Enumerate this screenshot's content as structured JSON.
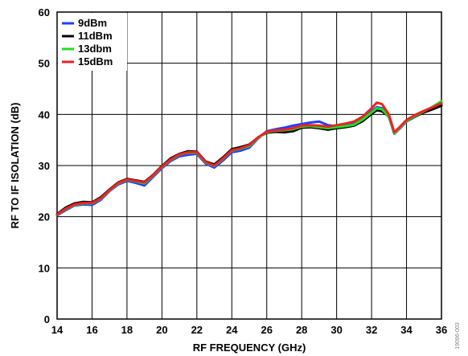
{
  "chart_data": {
    "type": "line",
    "title": "",
    "xlabel": "RF FREQUENCY (GHz)",
    "ylabel": "RF TO IF ISOLATION (dB)",
    "xlim": [
      14,
      36
    ],
    "ylim": [
      0,
      60
    ],
    "xticks": [
      14,
      16,
      18,
      20,
      22,
      24,
      26,
      28,
      30,
      32,
      34,
      36
    ],
    "yticks": [
      0,
      10,
      20,
      30,
      40,
      50,
      60
    ],
    "grid": true,
    "legend_position": "top-left",
    "figure_id": "19096-003",
    "series": [
      {
        "name": "9dBm",
        "color": "#1f3fff",
        "x": [
          14,
          14.5,
          15,
          15.5,
          16,
          16.5,
          17,
          17.5,
          18,
          18.5,
          19,
          19.5,
          20,
          20.5,
          21,
          21.5,
          22,
          22.5,
          23,
          23.5,
          24,
          24.5,
          25,
          25.5,
          26,
          26.5,
          27,
          27.5,
          28,
          28.5,
          29,
          29.5,
          30,
          30.5,
          31,
          31.5,
          32,
          32.3,
          32.6,
          33,
          33.3,
          33.6,
          34,
          34.5,
          35,
          35.5,
          36
        ],
        "y": [
          20.3,
          21.3,
          22.2,
          22.4,
          22.3,
          23.3,
          25.0,
          26.3,
          27.0,
          26.6,
          26.1,
          27.8,
          29.5,
          30.9,
          31.8,
          32.1,
          32.3,
          30.4,
          29.6,
          31.0,
          32.6,
          32.9,
          33.5,
          35.3,
          36.7,
          37.1,
          37.4,
          37.8,
          38.1,
          38.4,
          38.6,
          37.9,
          37.7,
          37.8,
          38.3,
          39.3,
          40.6,
          41.4,
          41.2,
          39.4,
          36.2,
          37.2,
          38.6,
          39.6,
          40.5,
          41.3,
          42.0
        ]
      },
      {
        "name": "11dBm",
        "color": "#000000",
        "x": [
          14,
          14.5,
          15,
          15.5,
          16,
          16.5,
          17,
          17.5,
          18,
          18.5,
          19,
          19.5,
          20,
          20.5,
          21,
          21.5,
          22,
          22.5,
          23,
          23.5,
          24,
          24.5,
          25,
          25.5,
          26,
          26.5,
          27,
          27.5,
          28,
          28.5,
          29,
          29.5,
          30,
          30.5,
          31,
          31.5,
          32,
          32.3,
          32.6,
          33,
          33.3,
          33.6,
          34,
          34.5,
          35,
          35.5,
          36
        ],
        "y": [
          20.5,
          21.8,
          22.6,
          22.9,
          22.8,
          23.8,
          25.3,
          26.7,
          27.4,
          27.1,
          26.8,
          28.2,
          29.9,
          31.4,
          32.3,
          32.8,
          32.7,
          30.8,
          30.2,
          31.6,
          33.2,
          33.6,
          34.1,
          35.5,
          36.4,
          36.6,
          36.5,
          36.7,
          37.4,
          37.5,
          37.3,
          37.0,
          37.3,
          37.5,
          37.8,
          38.7,
          40.1,
          40.8,
          40.6,
          39.6,
          36.4,
          37.4,
          38.7,
          39.6,
          40.4,
          41.0,
          41.7
        ]
      },
      {
        "name": "13dbm",
        "color": "#22dd22",
        "x": [
          14,
          14.5,
          15,
          15.5,
          16,
          16.5,
          17,
          17.5,
          18,
          18.5,
          19,
          19.5,
          20,
          20.5,
          21,
          21.5,
          22,
          22.5,
          23,
          23.5,
          24,
          24.5,
          25,
          25.5,
          26,
          26.5,
          27,
          27.5,
          28,
          28.5,
          29,
          29.5,
          30,
          30.5,
          31,
          31.5,
          32,
          32.3,
          32.6,
          33,
          33.3,
          33.6,
          34,
          34.5,
          35,
          35.5,
          36
        ],
        "y": [
          20.4,
          21.5,
          22.3,
          22.6,
          22.6,
          23.5,
          25.1,
          26.5,
          27.2,
          26.9,
          26.5,
          28.0,
          29.7,
          31.1,
          32.1,
          32.5,
          32.5,
          30.6,
          29.9,
          31.3,
          32.9,
          33.3,
          33.8,
          35.4,
          36.5,
          36.8,
          36.9,
          37.1,
          37.6,
          37.7,
          37.5,
          37.3,
          37.5,
          37.7,
          38.0,
          39.0,
          40.4,
          41.2,
          41.0,
          39.5,
          36.3,
          37.3,
          38.7,
          39.7,
          40.6,
          41.5,
          42.6
        ]
      },
      {
        "name": "15dBm",
        "color": "#ee2222",
        "x": [
          14,
          14.5,
          15,
          15.5,
          16,
          16.5,
          17,
          17.5,
          18,
          18.5,
          19,
          19.5,
          20,
          20.5,
          21,
          21.5,
          22,
          22.5,
          23,
          23.5,
          24,
          24.5,
          25,
          25.5,
          26,
          26.5,
          27,
          27.5,
          28,
          28.5,
          29,
          29.5,
          30,
          30.5,
          31,
          31.5,
          32,
          32.3,
          32.6,
          33,
          33.3,
          33.6,
          34,
          34.5,
          35,
          35.5,
          36
        ],
        "y": [
          20.4,
          21.6,
          22.4,
          22.7,
          22.7,
          23.6,
          25.2,
          26.6,
          27.3,
          27.0,
          26.7,
          28.1,
          29.8,
          31.2,
          32.2,
          32.6,
          32.6,
          30.7,
          30.0,
          31.4,
          33.0,
          33.4,
          34.0,
          35.5,
          36.6,
          36.9,
          37.0,
          37.3,
          37.8,
          37.9,
          37.8,
          37.6,
          37.9,
          38.2,
          38.6,
          39.6,
          41.2,
          42.3,
          42.0,
          39.9,
          36.5,
          37.5,
          38.9,
          39.9,
          40.7,
          41.4,
          42.2
        ]
      }
    ]
  }
}
